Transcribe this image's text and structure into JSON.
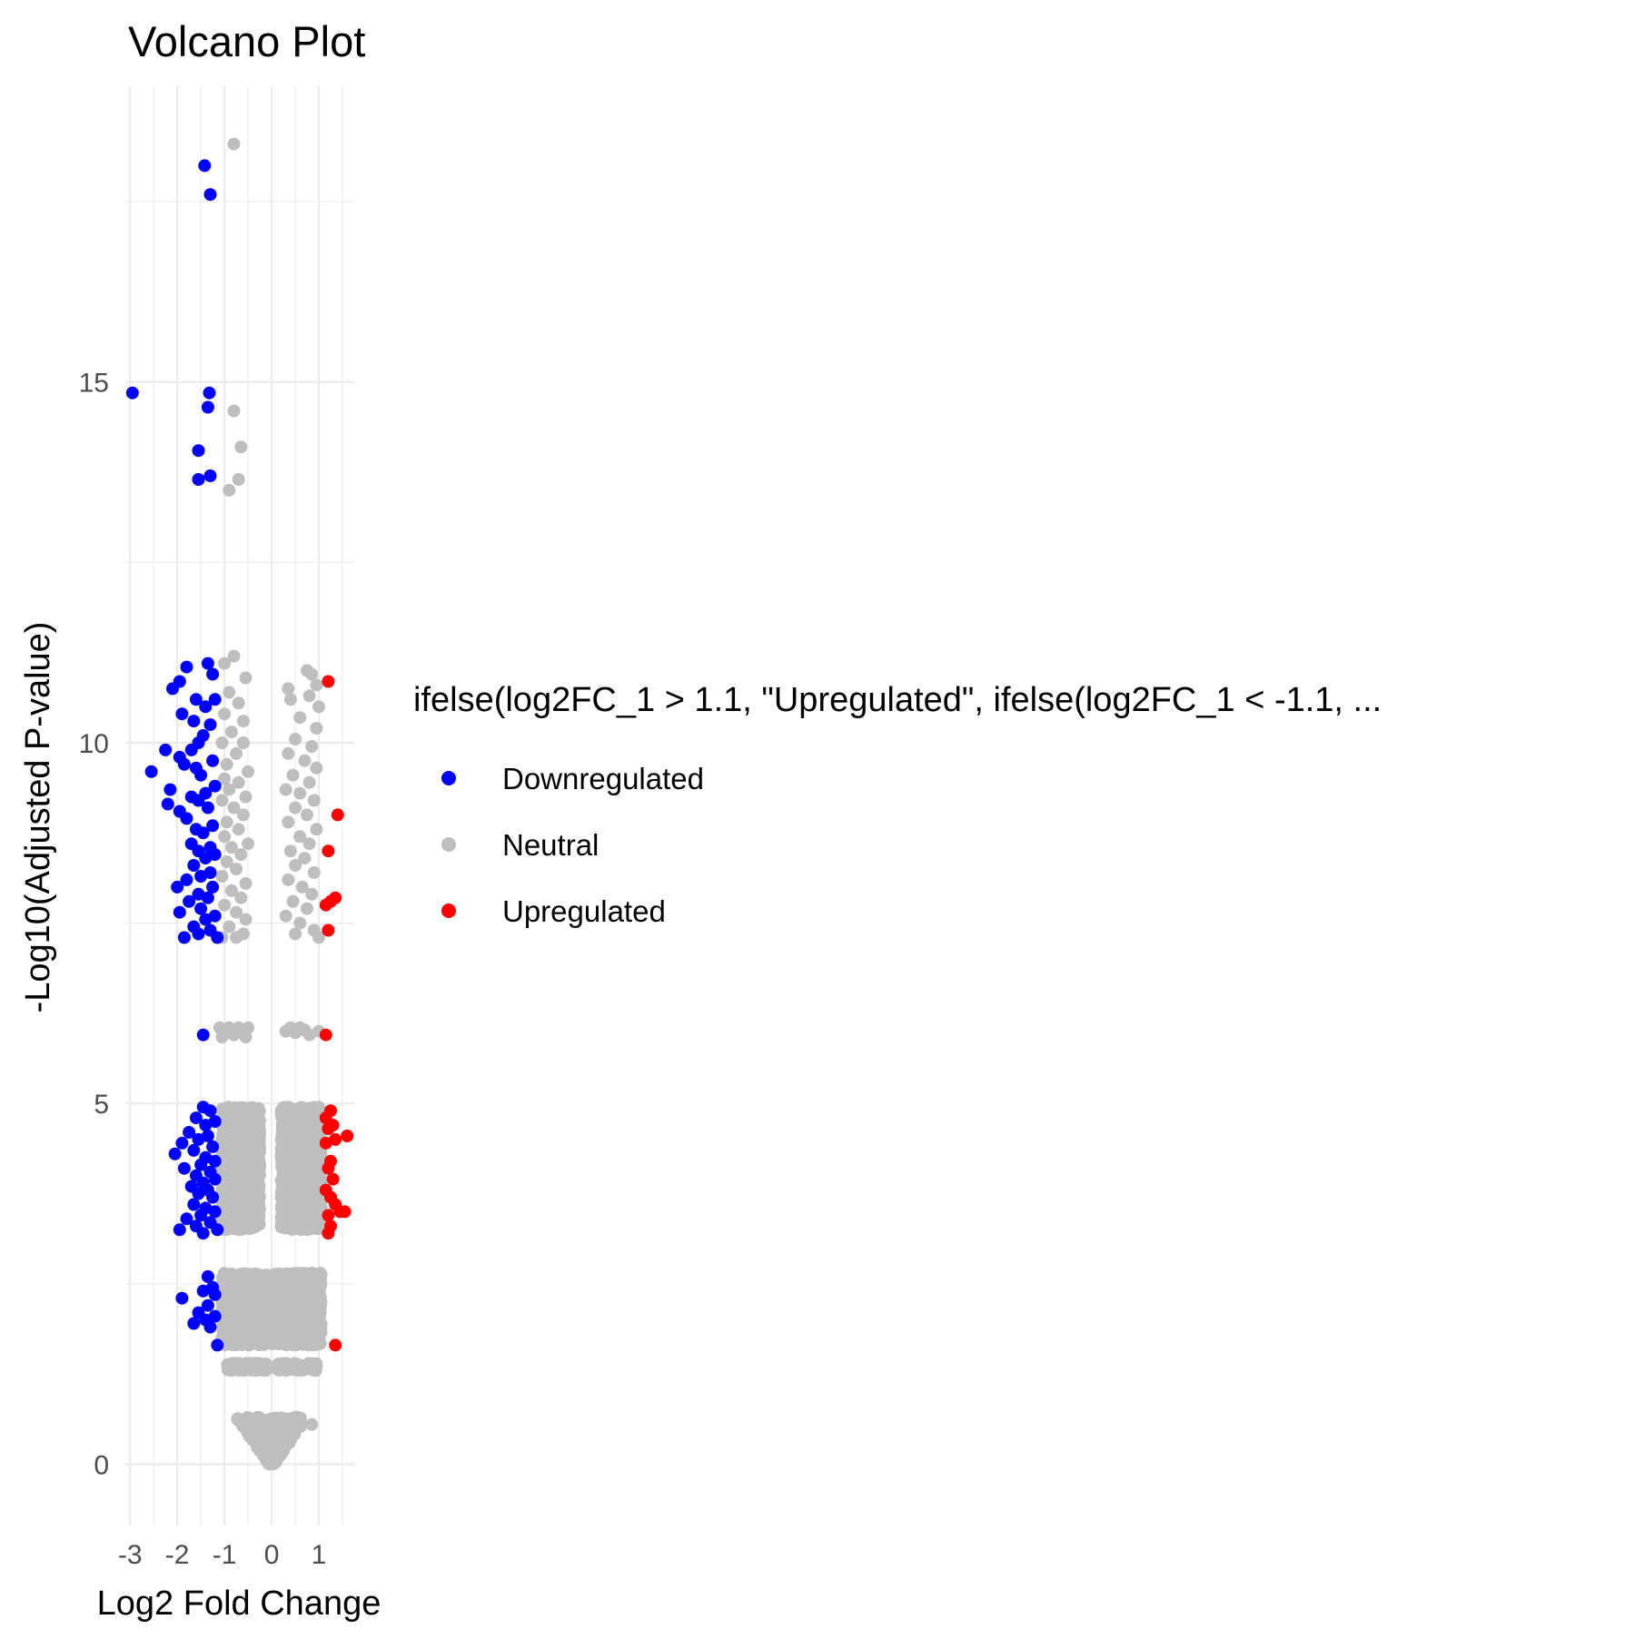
{
  "chart_data": {
    "type": "scatter",
    "title": "Volcano Plot",
    "xlabel": "Log2 Fold Change",
    "ylabel": "-Log10(Adjusted P-value)",
    "xlim": [
      -3.1,
      1.75
    ],
    "ylim": [
      -0.85,
      19.1
    ],
    "x_ticks": [
      -3,
      -2,
      -1,
      0,
      1
    ],
    "x_tick_labels": [
      "-3",
      "-2",
      "-1",
      "0",
      "1"
    ],
    "y_ticks": [
      0,
      5,
      10,
      15
    ],
    "y_tick_labels": [
      "0",
      "5",
      "10",
      "15"
    ],
    "grid": true,
    "legend": {
      "title": "ifelse(log2FC_1 > 1.1, \"Upregulated\", ifelse(log2FC_1 < -1.1, ...",
      "position": "right",
      "entries": [
        {
          "label": "Downregulated",
          "color": "#0000ff"
        },
        {
          "label": "Neutral",
          "color": "#bebebe"
        },
        {
          "label": "Upregulated",
          "color": "#ff0000"
        }
      ]
    },
    "colors": {
      "Downregulated": "#0000ff",
      "Neutral": "#bebebe",
      "Upregulated": "#ff0000"
    },
    "series": [
      {
        "name": "Downregulated",
        "color": "#0000ff",
        "points": [
          [
            -2.95,
            14.85
          ],
          [
            -1.42,
            18.0
          ],
          [
            -1.3,
            17.6
          ],
          [
            -1.32,
            14.85
          ],
          [
            -1.35,
            14.65
          ],
          [
            -1.55,
            14.05
          ],
          [
            -1.55,
            13.65
          ],
          [
            -1.3,
            13.7
          ],
          [
            -1.8,
            11.05
          ],
          [
            -1.95,
            10.85
          ],
          [
            -2.1,
            10.75
          ],
          [
            -1.35,
            11.1
          ],
          [
            -1.25,
            10.95
          ],
          [
            -1.6,
            10.6
          ],
          [
            -1.4,
            10.5
          ],
          [
            -1.2,
            10.6
          ],
          [
            -1.9,
            10.4
          ],
          [
            -1.65,
            10.3
          ],
          [
            -1.3,
            10.25
          ],
          [
            -1.45,
            10.1
          ],
          [
            -1.55,
            10.0
          ],
          [
            -1.7,
            9.9
          ],
          [
            -2.25,
            9.9
          ],
          [
            -1.95,
            9.8
          ],
          [
            -1.25,
            9.75
          ],
          [
            -1.85,
            9.7
          ],
          [
            -1.6,
            9.65
          ],
          [
            -2.55,
            9.6
          ],
          [
            -1.5,
            9.55
          ],
          [
            -1.2,
            9.4
          ],
          [
            -2.15,
            9.35
          ],
          [
            -1.4,
            9.3
          ],
          [
            -1.7,
            9.25
          ],
          [
            -1.55,
            9.2
          ],
          [
            -2.2,
            9.15
          ],
          [
            -1.35,
            9.1
          ],
          [
            -1.95,
            9.05
          ],
          [
            -1.8,
            8.95
          ],
          [
            -1.25,
            8.85
          ],
          [
            -1.6,
            8.8
          ],
          [
            -1.45,
            8.75
          ],
          [
            -1.7,
            8.6
          ],
          [
            -1.3,
            8.55
          ],
          [
            -1.55,
            8.5
          ],
          [
            -1.2,
            8.45
          ],
          [
            -1.4,
            8.4
          ],
          [
            -1.65,
            8.3
          ],
          [
            -1.3,
            8.2
          ],
          [
            -1.5,
            8.15
          ],
          [
            -1.8,
            8.1
          ],
          [
            -2.0,
            8.0
          ],
          [
            -1.25,
            8.0
          ],
          [
            -1.55,
            7.9
          ],
          [
            -1.35,
            7.85
          ],
          [
            -1.75,
            7.8
          ],
          [
            -1.5,
            7.7
          ],
          [
            -1.95,
            7.65
          ],
          [
            -1.2,
            7.6
          ],
          [
            -1.4,
            7.55
          ],
          [
            -1.65,
            7.45
          ],
          [
            -1.3,
            7.4
          ],
          [
            -1.55,
            7.35
          ],
          [
            -1.85,
            7.3
          ],
          [
            -1.15,
            7.3
          ],
          [
            -1.45,
            5.95
          ],
          [
            -1.45,
            4.95
          ],
          [
            -1.3,
            4.9
          ],
          [
            -1.6,
            4.8
          ],
          [
            -1.2,
            4.75
          ],
          [
            -1.4,
            4.7
          ],
          [
            -1.75,
            4.6
          ],
          [
            -1.35,
            4.55
          ],
          [
            -1.55,
            4.5
          ],
          [
            -1.9,
            4.45
          ],
          [
            -1.25,
            4.4
          ],
          [
            -1.65,
            4.35
          ],
          [
            -2.05,
            4.3
          ],
          [
            -1.4,
            4.25
          ],
          [
            -1.2,
            4.2
          ],
          [
            -1.5,
            4.15
          ],
          [
            -1.85,
            4.1
          ],
          [
            -1.3,
            4.05
          ],
          [
            -1.6,
            4.0
          ],
          [
            -1.2,
            3.95
          ],
          [
            -1.45,
            3.9
          ],
          [
            -1.7,
            3.85
          ],
          [
            -1.35,
            3.8
          ],
          [
            -1.55,
            3.75
          ],
          [
            -1.25,
            3.7
          ],
          [
            -1.65,
            3.6
          ],
          [
            -1.4,
            3.55
          ],
          [
            -1.2,
            3.5
          ],
          [
            -1.5,
            3.45
          ],
          [
            -1.8,
            3.4
          ],
          [
            -1.3,
            3.35
          ],
          [
            -1.6,
            3.3
          ],
          [
            -1.95,
            3.25
          ],
          [
            -1.15,
            3.25
          ],
          [
            -1.45,
            3.2
          ],
          [
            -1.35,
            2.6
          ],
          [
            -1.25,
            2.45
          ],
          [
            -1.45,
            2.4
          ],
          [
            -1.2,
            2.35
          ],
          [
            -1.9,
            2.3
          ],
          [
            -1.35,
            2.2
          ],
          [
            -1.55,
            2.1
          ],
          [
            -1.2,
            2.05
          ],
          [
            -1.4,
            2.0
          ],
          [
            -1.65,
            1.95
          ],
          [
            -1.3,
            1.9
          ],
          [
            -1.15,
            1.65
          ]
        ]
      },
      {
        "name": "Upregulated",
        "color": "#ff0000",
        "points": [
          [
            1.2,
            10.85
          ],
          [
            1.4,
            9.0
          ],
          [
            1.2,
            8.5
          ],
          [
            1.35,
            7.85
          ],
          [
            1.25,
            7.8
          ],
          [
            1.15,
            7.75
          ],
          [
            1.2,
            7.4
          ],
          [
            1.15,
            5.95
          ],
          [
            1.25,
            4.9
          ],
          [
            1.15,
            4.8
          ],
          [
            1.3,
            4.7
          ],
          [
            1.2,
            4.65
          ],
          [
            1.6,
            4.55
          ],
          [
            1.35,
            4.5
          ],
          [
            1.15,
            4.45
          ],
          [
            1.25,
            4.2
          ],
          [
            1.2,
            4.1
          ],
          [
            1.3,
            3.95
          ],
          [
            1.15,
            3.8
          ],
          [
            1.25,
            3.7
          ],
          [
            1.35,
            3.6
          ],
          [
            1.55,
            3.5
          ],
          [
            1.45,
            3.5
          ],
          [
            1.2,
            3.45
          ],
          [
            1.25,
            3.3
          ],
          [
            1.2,
            3.2
          ],
          [
            1.35,
            1.65
          ]
        ]
      },
      {
        "name": "Neutral",
        "color": "#bebebe",
        "points": [
          [
            -0.8,
            18.3
          ],
          [
            -0.8,
            14.6
          ],
          [
            -0.65,
            14.1
          ],
          [
            -0.7,
            13.65
          ],
          [
            -0.9,
            13.5
          ],
          [
            -0.8,
            11.2
          ],
          [
            -1.0,
            11.1
          ],
          [
            -0.55,
            10.9
          ],
          [
            -0.9,
            10.7
          ],
          [
            -0.7,
            10.55
          ],
          [
            -1.0,
            10.4
          ],
          [
            -0.6,
            10.3
          ],
          [
            -0.85,
            10.15
          ],
          [
            -1.05,
            10.0
          ],
          [
            -0.6,
            10.0
          ],
          [
            -0.75,
            9.85
          ],
          [
            -0.95,
            9.7
          ],
          [
            -0.5,
            9.6
          ],
          [
            -1.0,
            9.5
          ],
          [
            -0.7,
            9.45
          ],
          [
            -0.9,
            9.35
          ],
          [
            -0.55,
            9.25
          ],
          [
            -1.05,
            9.2
          ],
          [
            -0.8,
            9.1
          ],
          [
            -0.6,
            9.0
          ],
          [
            -0.95,
            8.9
          ],
          [
            -0.7,
            8.8
          ],
          [
            -1.0,
            8.7
          ],
          [
            -0.5,
            8.6
          ],
          [
            -0.85,
            8.55
          ],
          [
            -0.65,
            8.45
          ],
          [
            -0.95,
            8.35
          ],
          [
            -0.75,
            8.25
          ],
          [
            -1.05,
            8.15
          ],
          [
            -0.55,
            8.05
          ],
          [
            -0.85,
            7.95
          ],
          [
            -0.65,
            7.85
          ],
          [
            -1.0,
            7.75
          ],
          [
            -0.75,
            7.65
          ],
          [
            -0.55,
            7.55
          ],
          [
            -0.9,
            7.45
          ],
          [
            -0.6,
            7.35
          ],
          [
            -1.05,
            7.3
          ],
          [
            -0.75,
            7.3
          ],
          [
            -1.1,
            6.05
          ],
          [
            -1.0,
            5.98
          ],
          [
            -0.9,
            6.05
          ],
          [
            -0.8,
            5.95
          ],
          [
            -0.7,
            6.05
          ],
          [
            -0.6,
            5.98
          ],
          [
            -0.5,
            6.05
          ],
          [
            -1.05,
            5.92
          ],
          [
            -0.55,
            5.92
          ],
          [
            0.3,
            6.0
          ],
          [
            0.4,
            6.05
          ],
          [
            0.5,
            5.98
          ],
          [
            0.6,
            6.05
          ],
          [
            0.7,
            6.02
          ],
          [
            0.8,
            5.95
          ],
          [
            1.0,
            6.0
          ],
          [
            0.4,
            10.6
          ],
          [
            0.75,
            11.0
          ],
          [
            0.85,
            10.95
          ],
          [
            0.95,
            10.8
          ],
          [
            0.35,
            10.75
          ],
          [
            0.8,
            10.65
          ],
          [
            1.0,
            10.5
          ],
          [
            0.6,
            10.35
          ],
          [
            0.95,
            10.2
          ],
          [
            0.5,
            10.05
          ],
          [
            0.85,
            9.95
          ],
          [
            0.35,
            9.85
          ],
          [
            0.7,
            9.75
          ],
          [
            0.95,
            9.65
          ],
          [
            0.45,
            9.55
          ],
          [
            0.8,
            9.45
          ],
          [
            0.3,
            9.35
          ],
          [
            0.6,
            9.3
          ],
          [
            0.9,
            9.2
          ],
          [
            0.5,
            9.1
          ],
          [
            0.75,
            9.0
          ],
          [
            0.35,
            8.9
          ],
          [
            0.95,
            8.8
          ],
          [
            0.6,
            8.7
          ],
          [
            0.8,
            8.6
          ],
          [
            0.4,
            8.5
          ],
          [
            0.7,
            8.4
          ],
          [
            0.5,
            8.3
          ],
          [
            0.9,
            8.2
          ],
          [
            0.35,
            8.1
          ],
          [
            0.65,
            8.0
          ],
          [
            0.85,
            7.9
          ],
          [
            0.45,
            7.8
          ],
          [
            0.75,
            7.7
          ],
          [
            0.3,
            7.6
          ],
          [
            0.6,
            7.5
          ],
          [
            0.9,
            7.4
          ],
          [
            0.5,
            7.35
          ],
          [
            1.0,
            7.3
          ],
          [
            0.85,
            0.55
          ]
        ],
        "bands": [
          {
            "x_range": [
              -1.05,
              -0.25
            ],
            "y_range": [
              3.25,
              4.95
            ],
            "count": 1300
          },
          {
            "x_range": [
              0.2,
              1.05
            ],
            "y_range": [
              3.25,
              4.95
            ],
            "count": 1300
          },
          {
            "x_range": [
              -1.05,
              -0.1
            ],
            "y_range": [
              1.65,
              2.65
            ],
            "count": 800
          },
          {
            "x_range": [
              0.0,
              1.05
            ],
            "y_range": [
              1.65,
              2.65
            ],
            "count": 800
          },
          {
            "x_range": [
              -0.95,
              -0.1
            ],
            "y_range": [
              1.3,
              1.4
            ],
            "count": 120
          },
          {
            "x_range": [
              0.1,
              0.95
            ],
            "y_range": [
              1.3,
              1.4
            ],
            "count": 120
          },
          {
            "x_range": [
              -0.7,
              0.7
            ],
            "y_range": [
              0.0,
              0.65
            ],
            "count": 500,
            "shape": "funnel"
          }
        ]
      }
    ]
  }
}
